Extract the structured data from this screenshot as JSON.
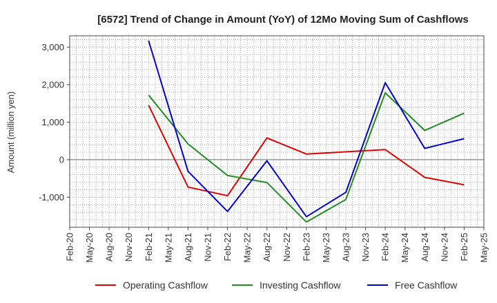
{
  "chart_data": {
    "type": "line",
    "title": "[6572]  Trend of Change in Amount (YoY) of 12Mo Moving Sum of Cashflows",
    "xlabel": "",
    "ylabel": "Amount (million yen)",
    "ylim": [
      -1800,
      3300
    ],
    "yticks": [
      -1000,
      0,
      1000,
      2000,
      3000
    ],
    "ytick_labels": [
      "-1,000",
      "0",
      "1,000",
      "2,000",
      "3,000"
    ],
    "categories": [
      "Feb-20",
      "May-20",
      "Aug-20",
      "Nov-20",
      "Feb-21",
      "May-21",
      "Aug-21",
      "Nov-21",
      "Feb-22",
      "May-22",
      "Aug-22",
      "Nov-22",
      "Feb-23",
      "May-23",
      "Aug-23",
      "Nov-23",
      "Feb-24",
      "May-24",
      "Aug-24",
      "Nov-24",
      "Feb-25",
      "May-25"
    ],
    "grid": true,
    "legend_position": "bottom",
    "series": [
      {
        "name": "Operating Cashflow",
        "color": "#dd0000",
        "points": [
          {
            "x": "Feb-21",
            "y": 1450
          },
          {
            "x": "Aug-21",
            "y": -730
          },
          {
            "x": "Feb-22",
            "y": -960
          },
          {
            "x": "Aug-22",
            "y": 580
          },
          {
            "x": "Feb-23",
            "y": 150
          },
          {
            "x": "Feb-24",
            "y": 270
          },
          {
            "x": "Aug-24",
            "y": -470
          },
          {
            "x": "Feb-25",
            "y": -670
          }
        ]
      },
      {
        "name": "Investing Cashflow",
        "color": "#228b22",
        "points": [
          {
            "x": "Feb-21",
            "y": 1720
          },
          {
            "x": "Aug-21",
            "y": 420
          },
          {
            "x": "Feb-22",
            "y": -420
          },
          {
            "x": "Aug-22",
            "y": -610
          },
          {
            "x": "Feb-23",
            "y": -1660
          },
          {
            "x": "Aug-23",
            "y": -1060
          },
          {
            "x": "Feb-24",
            "y": 1780
          },
          {
            "x": "Aug-24",
            "y": 780
          },
          {
            "x": "Feb-25",
            "y": 1240
          }
        ]
      },
      {
        "name": "Free Cashflow",
        "color": "#0000cc",
        "points": [
          {
            "x": "Feb-21",
            "y": 3170
          },
          {
            "x": "Aug-21",
            "y": -310
          },
          {
            "x": "Feb-22",
            "y": -1380
          },
          {
            "x": "Aug-22",
            "y": -30
          },
          {
            "x": "Feb-23",
            "y": -1520
          },
          {
            "x": "Aug-23",
            "y": -870
          },
          {
            "x": "Feb-24",
            "y": 2050
          },
          {
            "x": "Aug-24",
            "y": 300
          },
          {
            "x": "Feb-25",
            "y": 560
          }
        ]
      }
    ]
  }
}
